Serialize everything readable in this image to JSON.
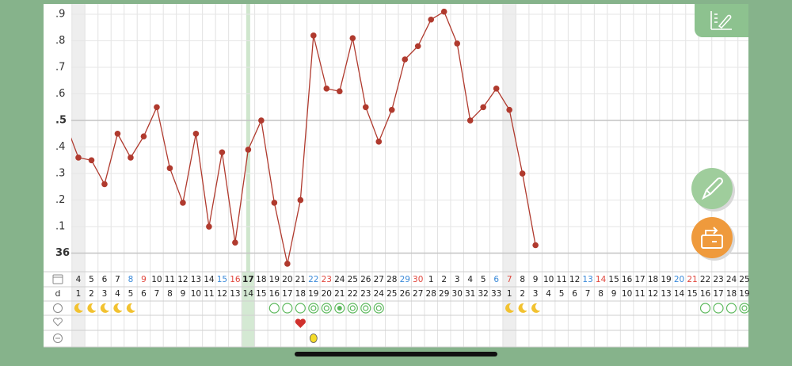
{
  "chart_data": {
    "type": "line",
    "color": "#b03a2e",
    "ylim": [
      35.93,
      36.93
    ],
    "yticks": [
      {
        "value": 36.9,
        "label": ".9"
      },
      {
        "value": 36.8,
        "label": ".8"
      },
      {
        "value": 36.7,
        "label": ".7"
      },
      {
        "value": 36.6,
        "label": ".6"
      },
      {
        "value": 36.5,
        "label": ".5"
      },
      {
        "value": 36.4,
        "label": ".4"
      },
      {
        "value": 36.3,
        "label": ".3"
      },
      {
        "value": 36.2,
        "label": ".2"
      },
      {
        "value": 36.1,
        "label": ".1"
      },
      36
    ],
    "grid": true,
    "categories": [
      null,
      "4",
      "5",
      "6",
      "7",
      "8",
      "9",
      "10",
      "11",
      "12",
      "13",
      "14",
      "15",
      "16",
      "17",
      "18",
      "19",
      "20",
      "21",
      "22",
      "23",
      "24",
      "25",
      "26",
      "27",
      "28",
      "29",
      "30",
      "1",
      "2",
      "3",
      "4",
      "5",
      "6",
      "7",
      "8",
      "9",
      "10",
      "11",
      "12",
      "13",
      "14",
      "15",
      "16",
      "17",
      "18",
      "19",
      "20",
      "21",
      "22",
      "23",
      "24",
      "25"
    ],
    "category_colors": [
      null,
      "#222",
      "#222",
      "#222",
      "#222",
      "#3b8ad9",
      "#e0473d",
      "#222",
      "#222",
      "#222",
      "#222",
      "#222",
      "#3b8ad9",
      "#e0473d",
      "#222",
      "#222",
      "#222",
      "#222",
      "#222",
      "#3b8ad9",
      "#e0473d",
      "#222",
      "#222",
      "#222",
      "#222",
      "#222",
      "#3b8ad9",
      "#e0473d",
      "#222",
      "#222",
      "#222",
      "#222",
      "#222",
      "#3b8ad9",
      "#e0473d",
      "#222",
      "#222",
      "#222",
      "#222",
      "#222",
      "#3b8ad9",
      "#e0473d",
      "#222",
      "#222",
      "#222",
      "#222",
      "#222",
      "#3b8ad9",
      "#e0473d",
      "#222",
      "#222",
      "#222",
      "#222"
    ],
    "cycle_day_label": "d",
    "cycle_days": [
      null,
      1,
      2,
      3,
      4,
      5,
      6,
      7,
      8,
      9,
      10,
      11,
      12,
      13,
      14,
      15,
      16,
      17,
      18,
      19,
      20,
      21,
      22,
      23,
      24,
      25,
      26,
      27,
      28,
      29,
      30,
      31,
      32,
      33,
      1,
      2,
      3,
      4,
      5,
      6,
      7,
      8,
      9,
      10,
      11,
      12,
      13,
      14,
      15,
      16,
      17,
      18,
      19
    ],
    "values": [
      36.49,
      36.36,
      36.35,
      36.26,
      36.45,
      36.36,
      36.44,
      36.55,
      36.32,
      36.19,
      36.45,
      36.1,
      36.38,
      36.04,
      36.39,
      36.5,
      36.19,
      35.96,
      36.2,
      36.82,
      36.62,
      36.61,
      36.81,
      36.55,
      36.42,
      36.54,
      36.73,
      36.78,
      36.88,
      36.91,
      36.79,
      36.5,
      36.55,
      36.62,
      36.54,
      36.3,
      36.03,
      null,
      null,
      null,
      null,
      null,
      null,
      null,
      null,
      null,
      null,
      null,
      null,
      null,
      null,
      null,
      null
    ]
  }
}
